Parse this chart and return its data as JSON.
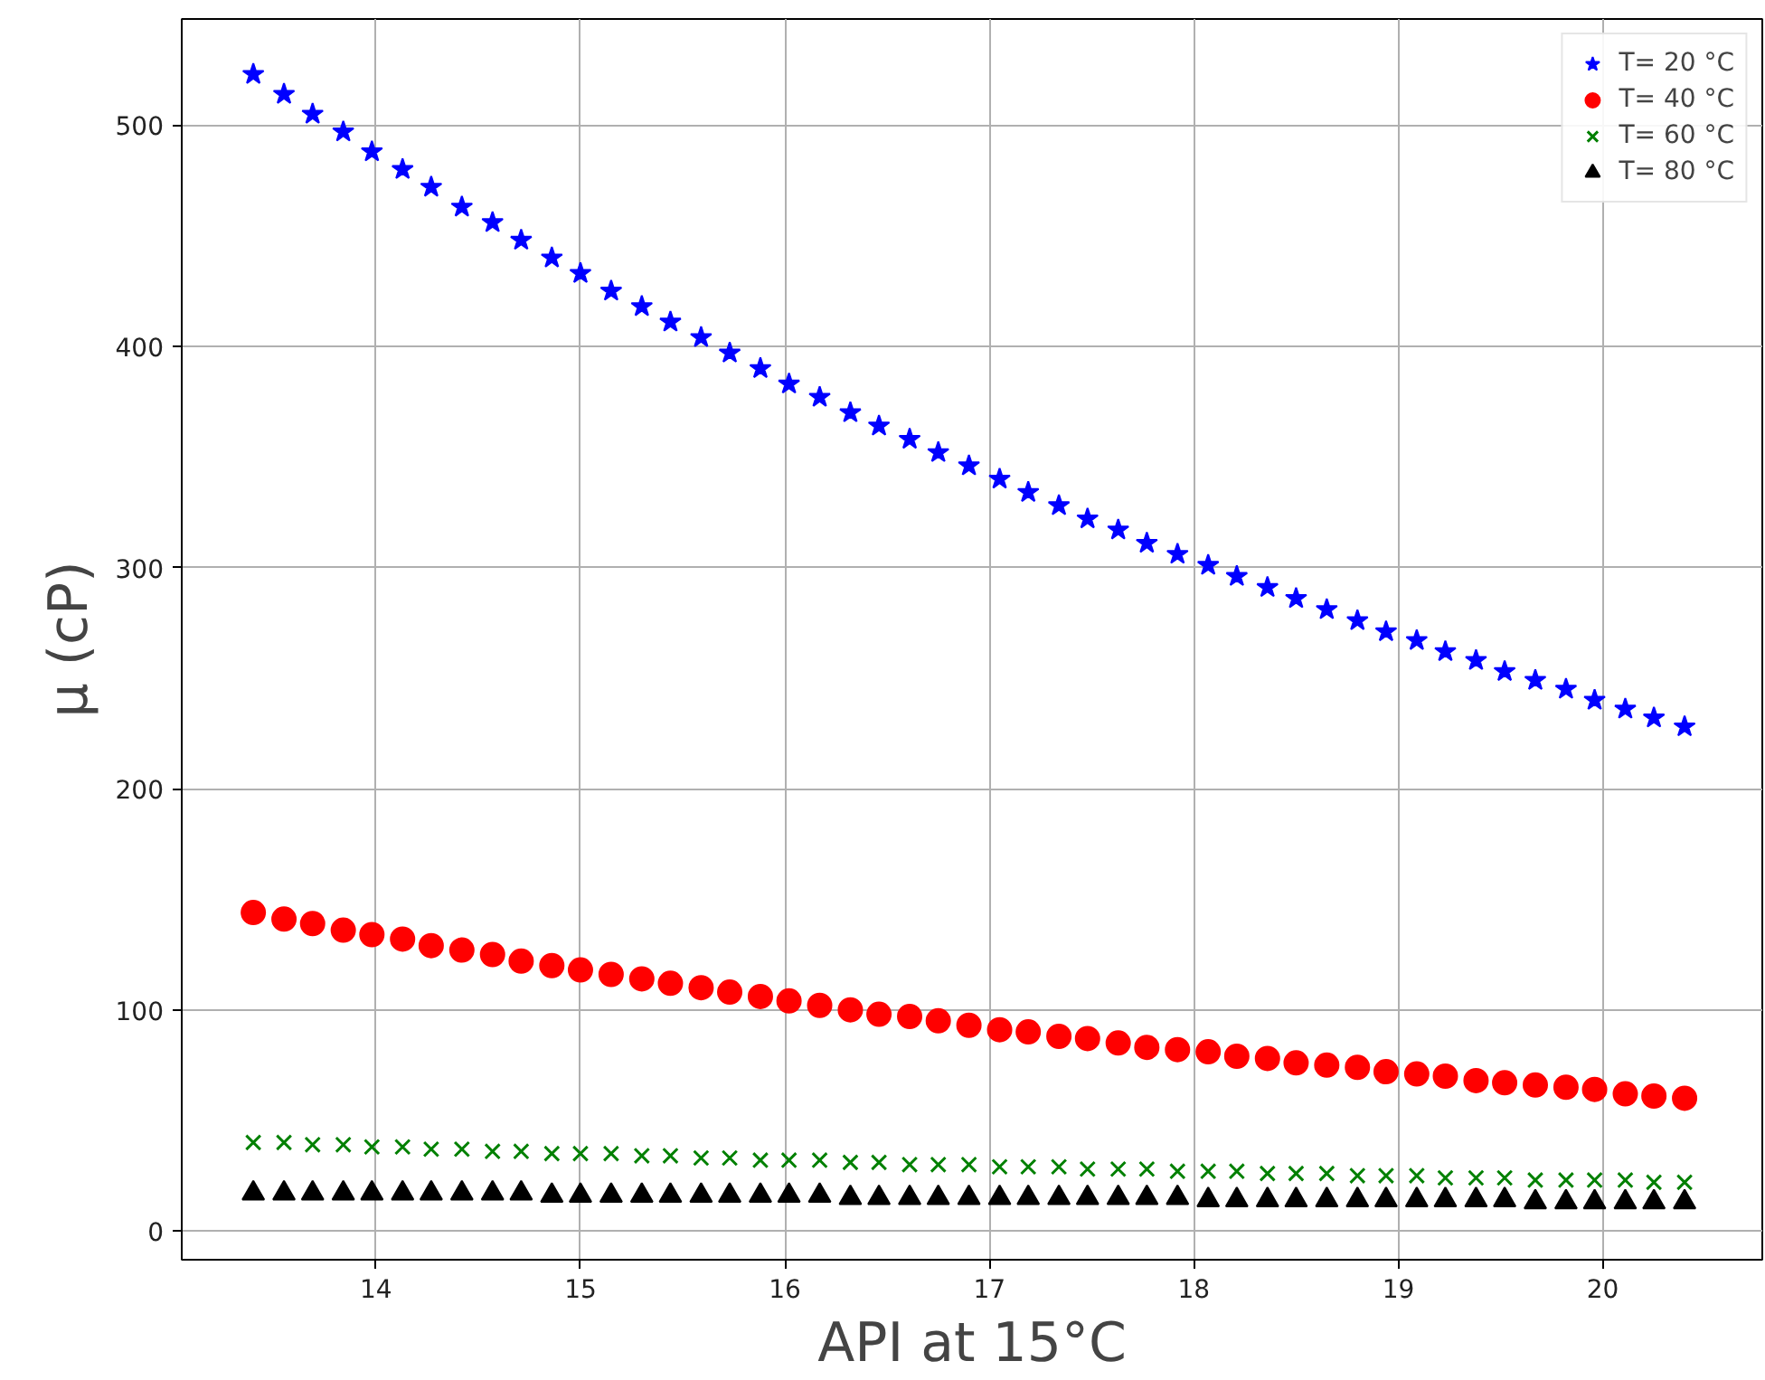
{
  "chart_data": {
    "type": "scatter",
    "xlabel": "API at 15°C",
    "ylabel": "μ (cP)",
    "x": [
      13.4,
      13.55,
      13.69,
      13.84,
      13.98,
      14.13,
      14.27,
      14.42,
      14.57,
      14.71,
      14.86,
      15.0,
      15.15,
      15.3,
      15.44,
      15.59,
      15.73,
      15.88,
      16.02,
      16.17,
      16.32,
      16.46,
      16.61,
      16.75,
      16.9,
      17.05,
      17.19,
      17.34,
      17.48,
      17.63,
      17.77,
      17.92,
      18.07,
      18.21,
      18.36,
      18.5,
      18.65,
      18.8,
      18.94,
      19.09,
      19.23,
      19.38,
      19.52,
      19.67,
      19.82,
      19.96,
      20.11,
      20.25,
      20.4
    ],
    "series": [
      {
        "name": "T= 20 °C",
        "color": "#0000ff",
        "marker": "star",
        "values": [
          523,
          514,
          505,
          497,
          488,
          480,
          472,
          463,
          456,
          448,
          440,
          433,
          425,
          418,
          411,
          404,
          397,
          390,
          383,
          377,
          370,
          364,
          358,
          352,
          346,
          340,
          334,
          328,
          322,
          317,
          311,
          306,
          301,
          296,
          291,
          286,
          281,
          276,
          271,
          267,
          262,
          258,
          253,
          249,
          245,
          240,
          236,
          232,
          228
        ]
      },
      {
        "name": "T= 40 °C",
        "color": "#ff0000",
        "marker": "circle",
        "values": [
          144,
          141,
          139,
          136,
          134,
          132,
          129,
          127,
          125,
          122,
          120,
          118,
          116,
          114,
          112,
          110,
          108,
          106,
          104,
          102,
          100,
          98,
          97,
          95,
          93,
          91,
          90,
          88,
          87,
          85,
          83,
          82,
          81,
          79,
          78,
          76,
          75,
          74,
          72,
          71,
          70,
          68,
          67,
          66,
          65,
          64,
          62,
          61,
          60
        ]
      },
      {
        "name": "T= 60 °C",
        "color": "#008000",
        "marker": "cross",
        "values": [
          40,
          40,
          39,
          39,
          38,
          38,
          37,
          37,
          36,
          36,
          35,
          35,
          35,
          34,
          34,
          33,
          33,
          32,
          32,
          32,
          31,
          31,
          30,
          30,
          30,
          29,
          29,
          29,
          28,
          28,
          28,
          27,
          27,
          27,
          26,
          26,
          26,
          25,
          25,
          25,
          24,
          24,
          24,
          23,
          23,
          23,
          23,
          22,
          22
        ]
      },
      {
        "name": "T= 80 °C",
        "color": "#000000",
        "marker": "triangle",
        "values": [
          17,
          17,
          17,
          17,
          17,
          17,
          17,
          17,
          17,
          17,
          16,
          16,
          16,
          16,
          16,
          16,
          16,
          16,
          16,
          16,
          15,
          15,
          15,
          15,
          15,
          15,
          15,
          15,
          15,
          15,
          15,
          15,
          14,
          14,
          14,
          14,
          14,
          14,
          14,
          14,
          14,
          14,
          14,
          13,
          13,
          13,
          13,
          13,
          13
        ]
      }
    ],
    "xlim": [
      13.05,
      20.78
    ],
    "ylim": [
      -13,
      548
    ],
    "xticks": [
      14,
      15,
      16,
      17,
      18,
      19,
      20
    ],
    "yticks": [
      0,
      100,
      200,
      300,
      400,
      500
    ],
    "grid": true,
    "legend": "top right"
  }
}
